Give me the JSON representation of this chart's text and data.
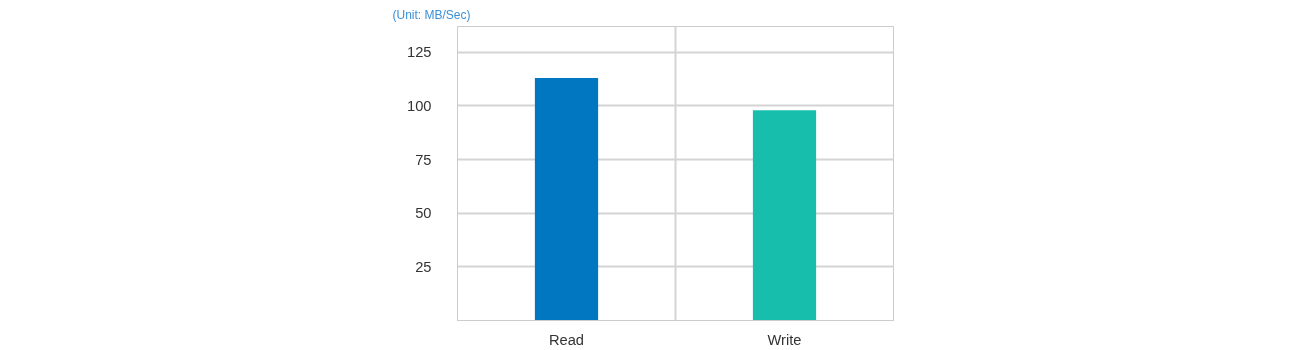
{
  "chart_data": {
    "type": "bar",
    "ylabel": "(Unit: MB/Sec)",
    "categories": [
      "Read",
      "Write"
    ],
    "colors": [
      "#0077c0",
      "#17beac"
    ],
    "values": [
      113,
      98
    ],
    "ylim": [
      0,
      137
    ],
    "yticks": [
      25,
      50,
      75,
      100,
      125
    ],
    "grid": true
  }
}
